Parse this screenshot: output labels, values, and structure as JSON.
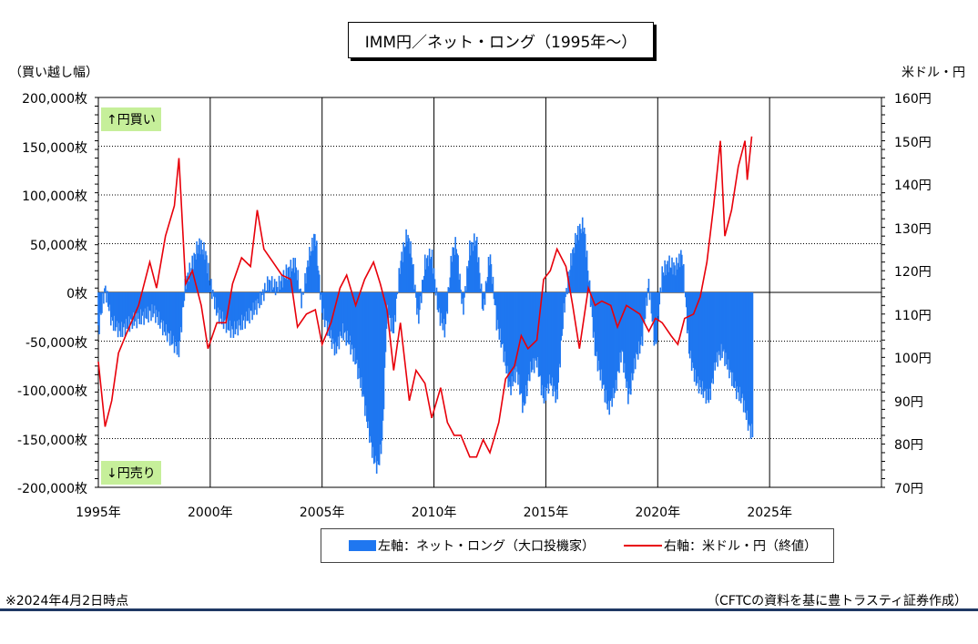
{
  "title": "IMM円／ネット・ロング（1995年〜）",
  "left_unit": "（買い越し幅）",
  "right_unit": "米ドル・円",
  "up_tag": "↑円買い",
  "down_tag": "↓円売り",
  "footer_left": "※2024年4月2日時点",
  "footer_right": "（CFTCの資料を基に豊トラスティ証券作成）",
  "colors": {
    "net_long": "#1f77f0",
    "usd_jpy": "#e8000a"
  },
  "legend": {
    "net_long": "左軸：ネット・ロング（大口投機家）",
    "usd_jpy": "右軸：米ドル・円（終値）"
  },
  "chart_data": {
    "type": "bar+line",
    "x_axis": {
      "range": [
        1995,
        2030
      ],
      "ticks": [
        1995,
        2000,
        2005,
        2010,
        2015,
        2020,
        2025
      ],
      "tick_labels": [
        "1995年",
        "2000年",
        "2005年",
        "2010年",
        "2015年",
        "2020年",
        "2025年"
      ]
    },
    "left_axis": {
      "range": [
        -200000,
        200000
      ],
      "ticks": [
        200000,
        150000,
        100000,
        50000,
        0,
        -50000,
        -100000,
        -150000,
        -200000
      ],
      "tick_labels": [
        "200,000枚",
        "150,000枚",
        "100,000枚",
        "50,000枚",
        "0枚",
        "-50,000枚",
        "-100,000枚",
        "-150,000枚",
        "-200,000枚"
      ]
    },
    "right_axis": {
      "range": [
        70,
        160
      ],
      "ticks": [
        160,
        150,
        140,
        130,
        120,
        110,
        100,
        90,
        80,
        70
      ],
      "tick_labels": [
        "160円",
        "150円",
        "140円",
        "130円",
        "120円",
        "110円",
        "100円",
        "90円",
        "80円",
        "70円"
      ]
    },
    "grid": "horizontal and vertical at ticks",
    "legend_position": "bottom",
    "series": [
      {
        "name": "左軸：ネット・ロング（大口投機家）",
        "axis": "left",
        "kind": "bar",
        "points": [
          [
            1995.0,
            -40000
          ],
          [
            1995.3,
            5000
          ],
          [
            1995.6,
            -30000
          ],
          [
            1996.0,
            -40000
          ],
          [
            1996.5,
            -30000
          ],
          [
            1997.0,
            -25000
          ],
          [
            1997.5,
            -20000
          ],
          [
            1998.0,
            -40000
          ],
          [
            1998.3,
            -50000
          ],
          [
            1998.6,
            -60000
          ],
          [
            1998.9,
            10000
          ],
          [
            1999.2,
            30000
          ],
          [
            1999.5,
            50000
          ],
          [
            1999.8,
            40000
          ],
          [
            2000.0,
            10000
          ],
          [
            2000.3,
            -20000
          ],
          [
            2000.6,
            -30000
          ],
          [
            2001.0,
            -40000
          ],
          [
            2001.5,
            -30000
          ],
          [
            2001.9,
            -20000
          ],
          [
            2002.2,
            -10000
          ],
          [
            2002.6,
            10000
          ],
          [
            2003.0,
            5000
          ],
          [
            2003.4,
            20000
          ],
          [
            2003.8,
            30000
          ],
          [
            2004.1,
            -10000
          ],
          [
            2004.4,
            35000
          ],
          [
            2004.7,
            60000
          ],
          [
            2005.0,
            -20000
          ],
          [
            2005.3,
            -40000
          ],
          [
            2005.6,
            -60000
          ],
          [
            2005.9,
            -40000
          ],
          [
            2006.2,
            -50000
          ],
          [
            2006.5,
            -70000
          ],
          [
            2006.8,
            -100000
          ],
          [
            2007.0,
            -130000
          ],
          [
            2007.3,
            -170000
          ],
          [
            2007.5,
            -180000
          ],
          [
            2007.7,
            -150000
          ],
          [
            2007.9,
            -20000
          ],
          [
            2008.2,
            -40000
          ],
          [
            2008.5,
            30000
          ],
          [
            2008.8,
            60000
          ],
          [
            2009.0,
            40000
          ],
          [
            2009.3,
            -30000
          ],
          [
            2009.6,
            30000
          ],
          [
            2009.9,
            40000
          ],
          [
            2010.2,
            -20000
          ],
          [
            2010.5,
            -40000
          ],
          [
            2010.8,
            40000
          ],
          [
            2011.0,
            50000
          ],
          [
            2011.3,
            -20000
          ],
          [
            2011.6,
            45000
          ],
          [
            2011.9,
            55000
          ],
          [
            2012.2,
            -20000
          ],
          [
            2012.5,
            40000
          ],
          [
            2012.8,
            -30000
          ],
          [
            2013.1,
            -60000
          ],
          [
            2013.4,
            -100000
          ],
          [
            2013.7,
            -80000
          ],
          [
            2014.0,
            -120000
          ],
          [
            2014.3,
            -80000
          ],
          [
            2014.6,
            -70000
          ],
          [
            2014.9,
            -110000
          ],
          [
            2015.2,
            -90000
          ],
          [
            2015.5,
            -110000
          ],
          [
            2015.8,
            -20000
          ],
          [
            2016.1,
            30000
          ],
          [
            2016.4,
            60000
          ],
          [
            2016.7,
            70000
          ],
          [
            2016.9,
            20000
          ],
          [
            2017.2,
            -60000
          ],
          [
            2017.5,
            -90000
          ],
          [
            2017.8,
            -120000
          ],
          [
            2018.1,
            -100000
          ],
          [
            2018.4,
            -60000
          ],
          [
            2018.7,
            -110000
          ],
          [
            2019.0,
            -70000
          ],
          [
            2019.3,
            -50000
          ],
          [
            2019.6,
            10000
          ],
          [
            2019.9,
            -60000
          ],
          [
            2020.2,
            20000
          ],
          [
            2020.5,
            30000
          ],
          [
            2020.8,
            25000
          ],
          [
            2021.1,
            40000
          ],
          [
            2021.4,
            -60000
          ],
          [
            2021.7,
            -90000
          ],
          [
            2022.0,
            -100000
          ],
          [
            2022.3,
            -110000
          ],
          [
            2022.6,
            -70000
          ],
          [
            2022.9,
            -60000
          ],
          [
            2023.2,
            -80000
          ],
          [
            2023.5,
            -100000
          ],
          [
            2023.8,
            -110000
          ],
          [
            2024.1,
            -140000
          ],
          [
            2024.25,
            -145000
          ]
        ]
      },
      {
        "name": "右軸：米ドル・円（終値）",
        "axis": "right",
        "kind": "line",
        "points": [
          [
            1995.0,
            99
          ],
          [
            1995.3,
            84
          ],
          [
            1995.6,
            90
          ],
          [
            1995.9,
            101
          ],
          [
            1996.3,
            106
          ],
          [
            1996.8,
            112
          ],
          [
            1997.3,
            122
          ],
          [
            1997.6,
            116
          ],
          [
            1998.0,
            128
          ],
          [
            1998.4,
            135
          ],
          [
            1998.6,
            146
          ],
          [
            1998.9,
            117
          ],
          [
            1999.2,
            120
          ],
          [
            1999.6,
            112
          ],
          [
            1999.9,
            102
          ],
          [
            2000.3,
            108
          ],
          [
            2000.7,
            108
          ],
          [
            2001.0,
            117
          ],
          [
            2001.4,
            123
          ],
          [
            2001.8,
            121
          ],
          [
            2002.1,
            134
          ],
          [
            2002.4,
            125
          ],
          [
            2002.8,
            122
          ],
          [
            2003.2,
            119
          ],
          [
            2003.6,
            118
          ],
          [
            2003.9,
            107
          ],
          [
            2004.3,
            110
          ],
          [
            2004.7,
            111
          ],
          [
            2005.0,
            103
          ],
          [
            2005.4,
            108
          ],
          [
            2005.8,
            116
          ],
          [
            2006.1,
            119
          ],
          [
            2006.5,
            112
          ],
          [
            2006.9,
            118
          ],
          [
            2007.3,
            122
          ],
          [
            2007.6,
            117
          ],
          [
            2007.9,
            111
          ],
          [
            2008.2,
            97
          ],
          [
            2008.5,
            108
          ],
          [
            2008.9,
            90
          ],
          [
            2009.2,
            97
          ],
          [
            2009.6,
            94
          ],
          [
            2009.9,
            86
          ],
          [
            2010.3,
            93
          ],
          [
            2010.6,
            85
          ],
          [
            2010.9,
            82
          ],
          [
            2011.2,
            82
          ],
          [
            2011.6,
            77
          ],
          [
            2011.9,
            77
          ],
          [
            2012.2,
            81
          ],
          [
            2012.5,
            78
          ],
          [
            2012.9,
            85
          ],
          [
            2013.2,
            95
          ],
          [
            2013.6,
            98
          ],
          [
            2013.9,
            105
          ],
          [
            2014.2,
            102
          ],
          [
            2014.6,
            104
          ],
          [
            2014.9,
            118
          ],
          [
            2015.2,
            120
          ],
          [
            2015.5,
            125
          ],
          [
            2015.9,
            121
          ],
          [
            2016.2,
            112
          ],
          [
            2016.5,
            102
          ],
          [
            2016.9,
            116
          ],
          [
            2017.2,
            112
          ],
          [
            2017.5,
            113
          ],
          [
            2017.9,
            112
          ],
          [
            2018.2,
            107
          ],
          [
            2018.6,
            112
          ],
          [
            2018.9,
            111
          ],
          [
            2019.2,
            110
          ],
          [
            2019.6,
            106
          ],
          [
            2019.9,
            109
          ],
          [
            2020.2,
            108
          ],
          [
            2020.6,
            105
          ],
          [
            2020.9,
            103
          ],
          [
            2021.2,
            109
          ],
          [
            2021.6,
            110
          ],
          [
            2021.9,
            114
          ],
          [
            2022.2,
            122
          ],
          [
            2022.5,
            135
          ],
          [
            2022.8,
            150
          ],
          [
            2023.0,
            128
          ],
          [
            2023.3,
            134
          ],
          [
            2023.6,
            144
          ],
          [
            2023.9,
            150
          ],
          [
            2024.0,
            141
          ],
          [
            2024.2,
            151
          ]
        ]
      }
    ]
  }
}
